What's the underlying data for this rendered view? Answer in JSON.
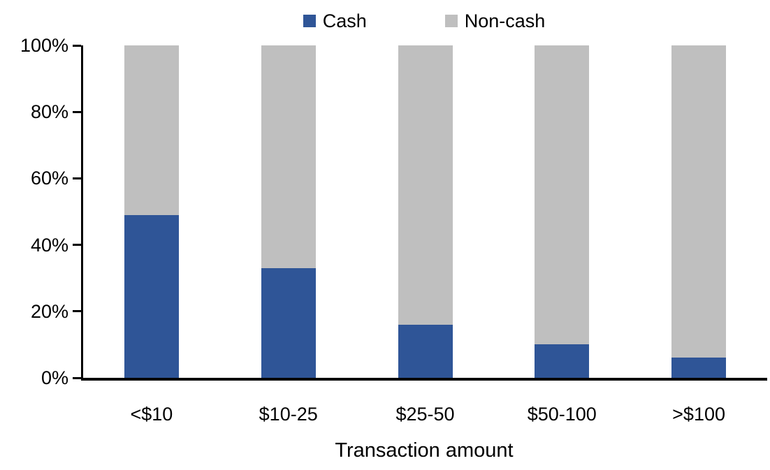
{
  "chart_data": {
    "type": "bar",
    "stacked": true,
    "title": "",
    "xlabel": "Transaction amount",
    "ylabel": "",
    "categories": [
      "<$10",
      "$10-25",
      "$25-50",
      "$50-100",
      ">$100"
    ],
    "series": [
      {
        "name": "Cash",
        "color": "#2F5597",
        "values": [
          49,
          33,
          16,
          10,
          6
        ]
      },
      {
        "name": "Non-cash",
        "color": "#BFBFBF",
        "values": [
          51,
          67,
          84,
          90,
          94
        ]
      }
    ],
    "ylim": [
      0,
      100
    ],
    "yticks": [
      0,
      20,
      40,
      60,
      80,
      100
    ],
    "ytick_suffix": "%",
    "grid": false,
    "legend_position": "top",
    "axis_color": "#000000",
    "background_color": "#FFFFFF"
  }
}
